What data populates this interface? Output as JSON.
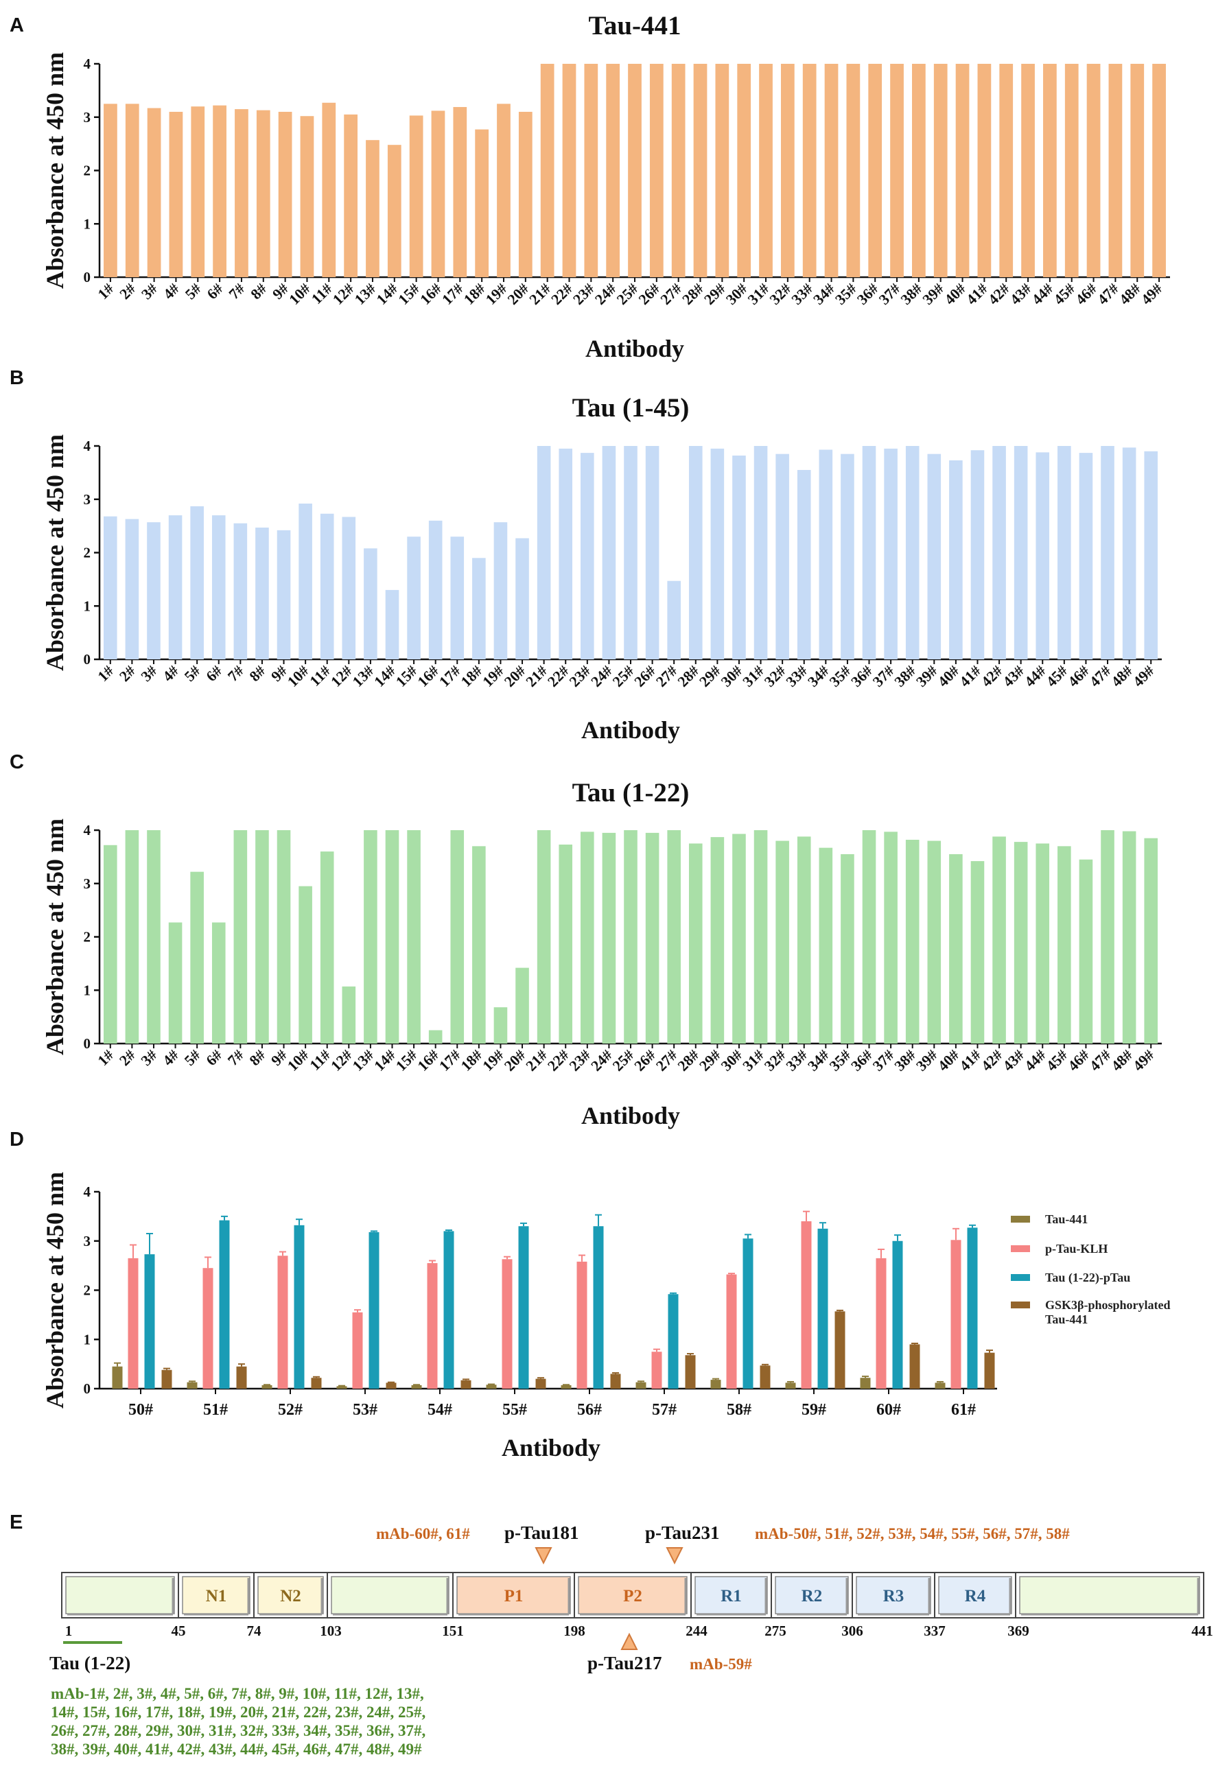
{
  "panel_labels": [
    "A",
    "B",
    "C",
    "D",
    "E"
  ],
  "chart_data": [
    {
      "type": "bar",
      "panel": "A",
      "title": "Tau-441",
      "xlabel": "Antibody",
      "ylabel": "Absorbance at 450 nm",
      "ylim": [
        0,
        4
      ],
      "yticks": [
        "0",
        "1",
        "2",
        "3",
        "4"
      ],
      "color": "#f4b57f",
      "categories": [
        "1#",
        "2#",
        "3#",
        "4#",
        "5#",
        "6#",
        "7#",
        "8#",
        "9#",
        "10#",
        "11#",
        "12#",
        "13#",
        "14#",
        "15#",
        "16#",
        "17#",
        "18#",
        "19#",
        "20#",
        "21#",
        "22#",
        "23#",
        "24#",
        "25#",
        "26#",
        "27#",
        "28#",
        "29#",
        "30#",
        "31#",
        "32#",
        "33#",
        "34#",
        "35#",
        "36#",
        "37#",
        "38#",
        "39#",
        "40#",
        "41#",
        "42#",
        "43#",
        "44#",
        "45#",
        "46#",
        "47#",
        "48#",
        "49#"
      ],
      "values": [
        3.25,
        3.25,
        3.17,
        3.1,
        3.2,
        3.22,
        3.15,
        3.13,
        3.1,
        3.02,
        3.27,
        3.05,
        2.57,
        2.48,
        3.03,
        3.12,
        3.19,
        2.77,
        3.25,
        3.1,
        4,
        4,
        4,
        4,
        4,
        4,
        4,
        4,
        4,
        4,
        4,
        4,
        4,
        4,
        4,
        4,
        4,
        4,
        4,
        4,
        4,
        4,
        4,
        4,
        4,
        4,
        4,
        4,
        4
      ]
    },
    {
      "type": "bar",
      "panel": "B",
      "title": "Tau (1-45)",
      "xlabel": "Antibody",
      "ylabel": "Absorbance at 450 nm",
      "ylim": [
        0,
        4
      ],
      "yticks": [
        "0",
        "1",
        "2",
        "3",
        "4"
      ],
      "color": "#c6dbf6",
      "categories": [
        "1#",
        "2#",
        "3#",
        "4#",
        "5#",
        "6#",
        "7#",
        "8#",
        "9#",
        "10#",
        "11#",
        "12#",
        "13#",
        "14#",
        "15#",
        "16#",
        "17#",
        "18#",
        "19#",
        "20#",
        "21#",
        "22#",
        "23#",
        "24#",
        "25#",
        "26#",
        "27#",
        "28#",
        "29#",
        "30#",
        "31#",
        "32#",
        "33#",
        "34#",
        "35#",
        "36#",
        "37#",
        "38#",
        "39#",
        "40#",
        "41#",
        "42#",
        "43#",
        "44#",
        "45#",
        "46#",
        "47#",
        "48#",
        "49#"
      ],
      "values": [
        2.68,
        2.63,
        2.57,
        2.7,
        2.87,
        2.7,
        2.55,
        2.47,
        2.42,
        2.92,
        2.73,
        2.67,
        2.08,
        1.3,
        2.3,
        2.6,
        2.3,
        1.9,
        2.57,
        2.27,
        4,
        3.95,
        3.87,
        4,
        4,
        4,
        1.47,
        4,
        3.95,
        3.82,
        4,
        3.85,
        3.55,
        3.93,
        3.85,
        4,
        3.95,
        4,
        3.85,
        3.73,
        3.92,
        4,
        4,
        3.88,
        4,
        3.87,
        4,
        3.97,
        3.9
      ]
    },
    {
      "type": "bar",
      "panel": "C",
      "title": "Tau (1-22)",
      "xlabel": "Antibody",
      "ylabel": "Absorbance at 450 nm",
      "ylim": [
        0,
        4
      ],
      "yticks": [
        "0",
        "1",
        "2",
        "3",
        "4"
      ],
      "color": "#a9dfa7",
      "categories": [
        "1#",
        "2#",
        "3#",
        "4#",
        "5#",
        "6#",
        "7#",
        "8#",
        "9#",
        "10#",
        "11#",
        "12#",
        "13#",
        "14#",
        "15#",
        "16#",
        "17#",
        "18#",
        "19#",
        "20#",
        "21#",
        "22#",
        "23#",
        "24#",
        "25#",
        "26#",
        "27#",
        "28#",
        "29#",
        "30#",
        "31#",
        "32#",
        "33#",
        "34#",
        "35#",
        "36#",
        "37#",
        "38#",
        "39#",
        "40#",
        "41#",
        "42#",
        "43#",
        "44#",
        "45#",
        "46#",
        "47#",
        "48#",
        "49#"
      ],
      "values": [
        3.72,
        4,
        4,
        2.27,
        3.22,
        2.27,
        4,
        4,
        4,
        2.95,
        3.6,
        1.07,
        4,
        4,
        4,
        0.25,
        4,
        3.7,
        0.68,
        1.42,
        4,
        3.73,
        3.97,
        3.95,
        4,
        3.95,
        4,
        3.75,
        3.87,
        3.93,
        4,
        3.8,
        3.88,
        3.67,
        3.55,
        4,
        3.97,
        3.82,
        3.8,
        3.55,
        3.42,
        3.88,
        3.78,
        3.75,
        3.7,
        3.45,
        4,
        3.98,
        3.85
      ]
    },
    {
      "type": "bar",
      "panel": "D",
      "xlabel": "Antibody",
      "ylabel": "Absorbance at 450 nm",
      "ylim": [
        0,
        4
      ],
      "yticks": [
        "0",
        "1",
        "2",
        "3",
        "4"
      ],
      "legend_position": "right",
      "categories": [
        "50#",
        "51#",
        "52#",
        "53#",
        "54#",
        "55#",
        "56#",
        "57#",
        "58#",
        "59#",
        "60#",
        "61#"
      ],
      "series": [
        {
          "name": "Tau-441",
          "color": "#8d7c3c",
          "values": [
            0.45,
            0.13,
            0.07,
            0.05,
            0.07,
            0.08,
            0.07,
            0.13,
            0.18,
            0.12,
            0.22,
            0.12
          ],
          "errors": [
            0.07,
            0.02,
            0.01,
            0.01,
            0.01,
            0.01,
            0.01,
            0.02,
            0.02,
            0.02,
            0.03,
            0.02
          ]
        },
        {
          "name": "p-Tau-KLH",
          "color": "#f58484",
          "values": [
            2.65,
            2.45,
            2.7,
            1.55,
            2.55,
            2.63,
            2.58,
            0.75,
            2.32,
            3.4,
            2.65,
            3.02
          ],
          "errors": [
            0.27,
            0.22,
            0.08,
            0.05,
            0.05,
            0.05,
            0.13,
            0.05,
            0.02,
            0.2,
            0.18,
            0.23
          ]
        },
        {
          "name": "Tau (1-22)-pTau",
          "color": "#1a9cb5",
          "values": [
            2.73,
            3.42,
            3.32,
            3.18,
            3.2,
            3.3,
            3.3,
            1.92,
            3.05,
            3.25,
            3.0,
            3.27
          ],
          "errors": [
            0.42,
            0.08,
            0.12,
            0.02,
            0.02,
            0.06,
            0.23,
            0.02,
            0.08,
            0.12,
            0.12,
            0.05
          ]
        },
        {
          "name": "GSK3β-phosphorylated Tau-441",
          "color": "#93642b",
          "values": [
            0.38,
            0.45,
            0.22,
            0.12,
            0.17,
            0.2,
            0.3,
            0.68,
            0.47,
            1.57,
            0.9,
            0.73
          ],
          "errors": [
            0.03,
            0.05,
            0.02,
            0.01,
            0.02,
            0.02,
            0.02,
            0.03,
            0.02,
            0.02,
            0.02,
            0.05
          ]
        }
      ]
    }
  ],
  "panelD_legend": [
    {
      "lines": [
        "Tau-441"
      ],
      "color": "#8d7c3c"
    },
    {
      "lines": [
        "p-Tau-KLH"
      ],
      "color": "#f58484"
    },
    {
      "lines": [
        "Tau (1-22)-pTau"
      ],
      "color": "#1a9cb5"
    },
    {
      "lines": [
        "GSK3β-phosphorylated",
        "Tau-441"
      ],
      "color": "#93642b"
    }
  ],
  "panelE": {
    "domains": [
      {
        "label": "",
        "fill": "#eef9de"
      },
      {
        "label": "N1",
        "fill": "#fdf6d6",
        "text_color": "#8d6a1e"
      },
      {
        "label": "N2",
        "fill": "#fdf6d6",
        "text_color": "#8d6a1e"
      },
      {
        "label": "",
        "fill": "#eef9de"
      },
      {
        "label": "P1",
        "fill": "#fbd7bd",
        "text_color": "#c8641e"
      },
      {
        "label": "P2",
        "fill": "#fbd7bd",
        "text_color": "#c8641e"
      },
      {
        "label": "R1",
        "fill": "#e3edf9",
        "text_color": "#2f5f86"
      },
      {
        "label": "R2",
        "fill": "#e3edf9",
        "text_color": "#2f5f86"
      },
      {
        "label": "R3",
        "fill": "#e3edf9",
        "text_color": "#2f5f86"
      },
      {
        "label": "R4",
        "fill": "#e3edf9",
        "text_color": "#2f5f86"
      },
      {
        "label": "",
        "fill": "#eef9de"
      }
    ],
    "positions": [
      "1",
      "45",
      "74",
      "103",
      "151",
      "198",
      "244",
      "275",
      "306",
      "337",
      "369",
      "441"
    ],
    "sites": {
      "p181": "p-Tau181",
      "p231": "p-Tau231",
      "p217": "p-Tau217"
    },
    "mab_labels": {
      "m6061": "mAb-60#, 61#",
      "m5058": "mAb-50#, 51#, 52#, 53#, 54#, 55#, 56#, 57#, 58#",
      "m59": "mAb-59#"
    },
    "tau122_label": "Tau (1-22)",
    "green_lines": [
      "mAb-1#, 2#, 3#, 4#, 5#, 6#, 7#, 8#, 9#, 10#, 11#, 12#, 13#,",
      "14#, 15#, 16#, 17#, 18#, 19#, 20#, 21#, 22#, 23#, 24#, 25#,",
      "26#, 27#, 28#, 29#, 30#, 31#, 32#, 33#, 34#, 35#, 36#, 37#,",
      "38#, 39#, 40#, 41#, 42#, 43#, 44#, 45#, 46#, 47#, 48#, 49#"
    ],
    "colors": {
      "arrow": "#f7b37a",
      "arrow_stroke": "#d27a3c",
      "tau122_line": "#5a9a3a"
    }
  }
}
